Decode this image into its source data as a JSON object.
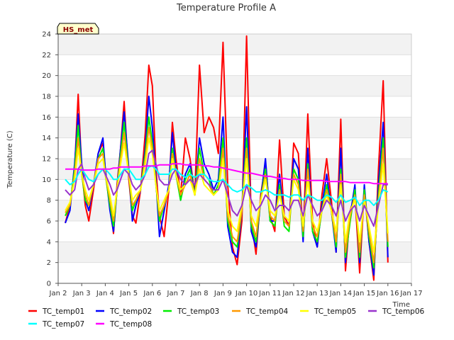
{
  "chart_data": {
    "type": "line",
    "title": "Temperature Profile A",
    "xlabel": "Time",
    "ylabel": "Temperature (C)",
    "badge": "HS_met",
    "xlim": [
      2,
      17
    ],
    "ylim": [
      0,
      24
    ],
    "x_ticks": [
      2,
      3,
      4,
      5,
      6,
      7,
      8,
      9,
      10,
      11,
      12,
      13,
      14,
      15,
      16,
      17
    ],
    "x_tick_labels": [
      "Jan 2",
      "Jan 3",
      "Jan 4",
      "Jan 5",
      "Jan 6",
      "Jan 7",
      "Jan 8",
      "Jan 9",
      "Jan 10",
      "Jan 11",
      "Jan 12",
      "Jan 13",
      "Jan 14",
      "Jan 15",
      "Jan 16",
      "Jan 17"
    ],
    "y_ticks": [
      0,
      2,
      4,
      6,
      8,
      10,
      12,
      14,
      16,
      18,
      20,
      22,
      24
    ],
    "grid": true,
    "legend_position": "bottom",
    "x": [
      2.3,
      2.5,
      2.7,
      2.85,
      3.0,
      3.15,
      3.3,
      3.5,
      3.7,
      3.9,
      4.0,
      4.2,
      4.35,
      4.5,
      4.65,
      4.8,
      5.0,
      5.15,
      5.3,
      5.5,
      5.7,
      5.85,
      6.0,
      6.15,
      6.3,
      6.5,
      6.7,
      6.85,
      7.0,
      7.2,
      7.4,
      7.6,
      7.8,
      8.0,
      8.2,
      8.4,
      8.6,
      8.8,
      9.0,
      9.2,
      9.4,
      9.6,
      9.8,
      10.0,
      10.2,
      10.4,
      10.6,
      10.8,
      11.0,
      11.2,
      11.4,
      11.6,
      11.8,
      12.0,
      12.2,
      12.4,
      12.6,
      12.8,
      13.0,
      13.2,
      13.4,
      13.6,
      13.8,
      14.0,
      14.2,
      14.4,
      14.6,
      14.8,
      15.0,
      15.2,
      15.4,
      15.6,
      15.8,
      16.0
    ],
    "series": [
      {
        "name": "TC_temp01",
        "color": "#ff0000",
        "values": [
          5.8,
          7.5,
          11.0,
          18.2,
          11.0,
          7.5,
          6.0,
          9.0,
          12.5,
          13.5,
          11.0,
          7.5,
          4.8,
          9.5,
          13.0,
          17.5,
          10.0,
          6.5,
          5.8,
          9.0,
          14.5,
          21.0,
          19.0,
          11.0,
          6.5,
          4.5,
          9.0,
          15.5,
          12.0,
          8.5,
          14.0,
          12.0,
          8.5,
          21.0,
          14.5,
          16.0,
          15.0,
          12.5,
          23.2,
          9.5,
          3.5,
          1.8,
          6.0,
          23.8,
          6.0,
          2.8,
          8.5,
          11.5,
          6.5,
          5.0,
          13.8,
          6.5,
          5.5,
          13.5,
          12.5,
          4.5,
          16.3,
          6.0,
          3.5,
          8.5,
          12.0,
          8.0,
          3.0,
          15.8,
          1.2,
          7.0,
          8.5,
          1.0,
          9.0,
          4.0,
          0.3,
          11.0,
          19.5,
          2.0
        ]
      },
      {
        "name": "TC_temp02",
        "color": "#0000ff",
        "values": [
          5.8,
          7.0,
          11.5,
          16.3,
          11.5,
          8.0,
          7.0,
          9.5,
          12.5,
          14.0,
          11.0,
          7.0,
          5.0,
          9.0,
          13.0,
          16.5,
          11.0,
          6.0,
          7.5,
          9.0,
          13.0,
          18.0,
          15.0,
          10.0,
          4.5,
          7.0,
          9.5,
          14.5,
          11.0,
          8.0,
          10.5,
          11.5,
          8.5,
          14.0,
          11.5,
          10.5,
          9.0,
          10.0,
          16.0,
          5.5,
          3.0,
          2.5,
          7.0,
          17.0,
          5.0,
          3.5,
          8.0,
          12.0,
          6.0,
          6.0,
          10.5,
          6.0,
          5.5,
          12.0,
          11.0,
          4.0,
          13.0,
          5.0,
          3.5,
          7.5,
          10.5,
          7.0,
          3.0,
          13.0,
          2.0,
          6.5,
          9.5,
          2.0,
          9.5,
          4.0,
          0.8,
          9.5,
          15.5,
          2.5
        ]
      },
      {
        "name": "TC_temp03",
        "color": "#00ee00",
        "values": [
          6.5,
          7.5,
          11.0,
          15.2,
          10.5,
          8.0,
          7.5,
          9.5,
          12.0,
          13.0,
          10.5,
          7.5,
          5.5,
          9.0,
          12.5,
          15.5,
          10.5,
          7.0,
          8.0,
          9.0,
          12.5,
          16.0,
          13.5,
          9.5,
          6.0,
          7.5,
          9.0,
          13.0,
          10.5,
          8.0,
          10.0,
          11.0,
          8.5,
          13.0,
          10.5,
          10.0,
          8.5,
          9.5,
          14.0,
          6.0,
          4.0,
          3.5,
          7.0,
          14.0,
          5.5,
          4.0,
          8.0,
          11.0,
          6.0,
          5.5,
          9.5,
          5.5,
          5.0,
          11.0,
          10.0,
          4.5,
          11.5,
          5.0,
          4.0,
          7.0,
          9.5,
          7.0,
          3.5,
          11.0,
          2.5,
          6.0,
          9.0,
          2.5,
          9.0,
          4.5,
          1.5,
          8.5,
          14.0,
          3.5
        ]
      },
      {
        "name": "TC_temp04",
        "color": "#ff9900",
        "values": [
          6.8,
          7.5,
          10.5,
          14.0,
          10.5,
          8.5,
          7.5,
          9.5,
          12.0,
          12.5,
          10.5,
          8.0,
          6.0,
          9.0,
          12.0,
          14.5,
          10.5,
          7.5,
          8.0,
          9.0,
          12.0,
          15.0,
          13.0,
          9.5,
          6.5,
          7.5,
          9.0,
          12.5,
          10.5,
          8.5,
          9.5,
          10.5,
          8.5,
          12.0,
          10.0,
          9.5,
          8.5,
          9.0,
          13.0,
          6.5,
          4.5,
          4.0,
          7.0,
          13.0,
          6.0,
          4.5,
          8.0,
          10.5,
          6.5,
          6.0,
          9.0,
          6.0,
          5.5,
          10.5,
          9.5,
          5.0,
          11.0,
          5.5,
          4.5,
          7.0,
          9.0,
          7.0,
          4.0,
          10.5,
          3.0,
          6.5,
          8.5,
          3.0,
          8.5,
          5.0,
          2.0,
          8.0,
          13.0,
          4.0
        ]
      },
      {
        "name": "TC_temp05",
        "color": "#ffff00",
        "values": [
          7.0,
          7.8,
          10.0,
          13.0,
          10.5,
          9.0,
          8.0,
          9.5,
          11.5,
          12.0,
          10.5,
          8.5,
          6.5,
          9.0,
          11.5,
          13.5,
          10.5,
          8.0,
          8.5,
          9.0,
          11.5,
          14.0,
          12.5,
          9.5,
          7.0,
          8.0,
          9.0,
          12.0,
          10.5,
          9.0,
          9.5,
          10.0,
          8.5,
          11.0,
          9.5,
          9.0,
          8.5,
          9.0,
          12.0,
          7.0,
          5.5,
          5.0,
          7.5,
          12.0,
          6.5,
          5.5,
          8.0,
          10.0,
          7.0,
          6.5,
          8.5,
          6.5,
          6.0,
          10.0,
          9.0,
          5.5,
          10.0,
          6.0,
          5.0,
          7.0,
          8.5,
          7.0,
          5.0,
          9.5,
          4.0,
          7.0,
          8.0,
          4.0,
          8.0,
          5.5,
          3.0,
          7.5,
          11.5,
          4.8
        ]
      },
      {
        "name": "TC_temp06",
        "color": "#9933cc",
        "values": [
          9.0,
          8.5,
          9.0,
          11.0,
          11.5,
          10.0,
          9.0,
          9.5,
          10.5,
          11.0,
          10.5,
          9.5,
          8.5,
          9.0,
          10.0,
          11.0,
          10.5,
          9.5,
          9.0,
          9.5,
          10.5,
          12.5,
          12.8,
          11.5,
          10.0,
          9.5,
          9.5,
          10.5,
          11.0,
          10.0,
          9.5,
          10.0,
          9.5,
          10.5,
          10.0,
          9.5,
          9.0,
          9.0,
          10.0,
          8.5,
          7.0,
          6.5,
          7.5,
          9.5,
          8.0,
          7.0,
          7.5,
          8.5,
          8.0,
          7.0,
          7.5,
          7.5,
          7.0,
          8.0,
          8.0,
          6.5,
          8.5,
          7.5,
          6.5,
          7.0,
          8.0,
          7.5,
          6.5,
          8.0,
          6.0,
          7.0,
          7.5,
          6.0,
          7.5,
          6.5,
          5.5,
          7.5,
          9.5,
          9.5
        ]
      },
      {
        "name": "TC_temp07",
        "color": "#00ffff",
        "values": [
          10.0,
          9.5,
          9.8,
          10.5,
          11.0,
          10.5,
          10.0,
          9.8,
          10.5,
          11.0,
          11.0,
          10.5,
          10.0,
          10.0,
          10.5,
          11.0,
          11.0,
          10.5,
          10.0,
          10.0,
          10.5,
          11.2,
          11.3,
          11.0,
          10.5,
          10.5,
          10.5,
          11.0,
          11.0,
          10.5,
          10.2,
          10.5,
          10.2,
          10.5,
          10.5,
          10.0,
          9.8,
          9.8,
          10.0,
          9.5,
          9.0,
          8.8,
          9.0,
          9.5,
          9.2,
          8.8,
          8.8,
          9.0,
          8.8,
          8.5,
          8.5,
          8.5,
          8.3,
          8.5,
          8.5,
          8.0,
          8.5,
          8.3,
          8.0,
          8.0,
          8.5,
          8.3,
          7.8,
          8.5,
          7.8,
          8.0,
          8.3,
          7.5,
          8.0,
          8.0,
          7.5,
          8.0,
          9.0,
          8.8
        ]
      },
      {
        "name": "TC_temp08",
        "color": "#ff00ff",
        "values": [
          11.0,
          11.0,
          11.0,
          11.0,
          10.9,
          10.9,
          10.9,
          10.9,
          11.0,
          11.0,
          11.0,
          11.0,
          11.1,
          11.1,
          11.2,
          11.2,
          11.2,
          11.2,
          11.2,
          11.2,
          11.3,
          11.3,
          11.3,
          11.3,
          11.4,
          11.4,
          11.4,
          11.5,
          11.5,
          11.5,
          11.4,
          11.4,
          11.4,
          11.4,
          11.3,
          11.3,
          11.2,
          11.2,
          11.1,
          11.0,
          10.9,
          10.8,
          10.7,
          10.6,
          10.6,
          10.5,
          10.4,
          10.3,
          10.3,
          10.2,
          10.1,
          10.1,
          10.0,
          10.0,
          10.0,
          9.9,
          9.9,
          9.9,
          9.9,
          9.9,
          9.8,
          9.8,
          9.8,
          9.8,
          9.8,
          9.7,
          9.7,
          9.7,
          9.7,
          9.7,
          9.6,
          9.6,
          9.6,
          9.6
        ]
      }
    ]
  }
}
